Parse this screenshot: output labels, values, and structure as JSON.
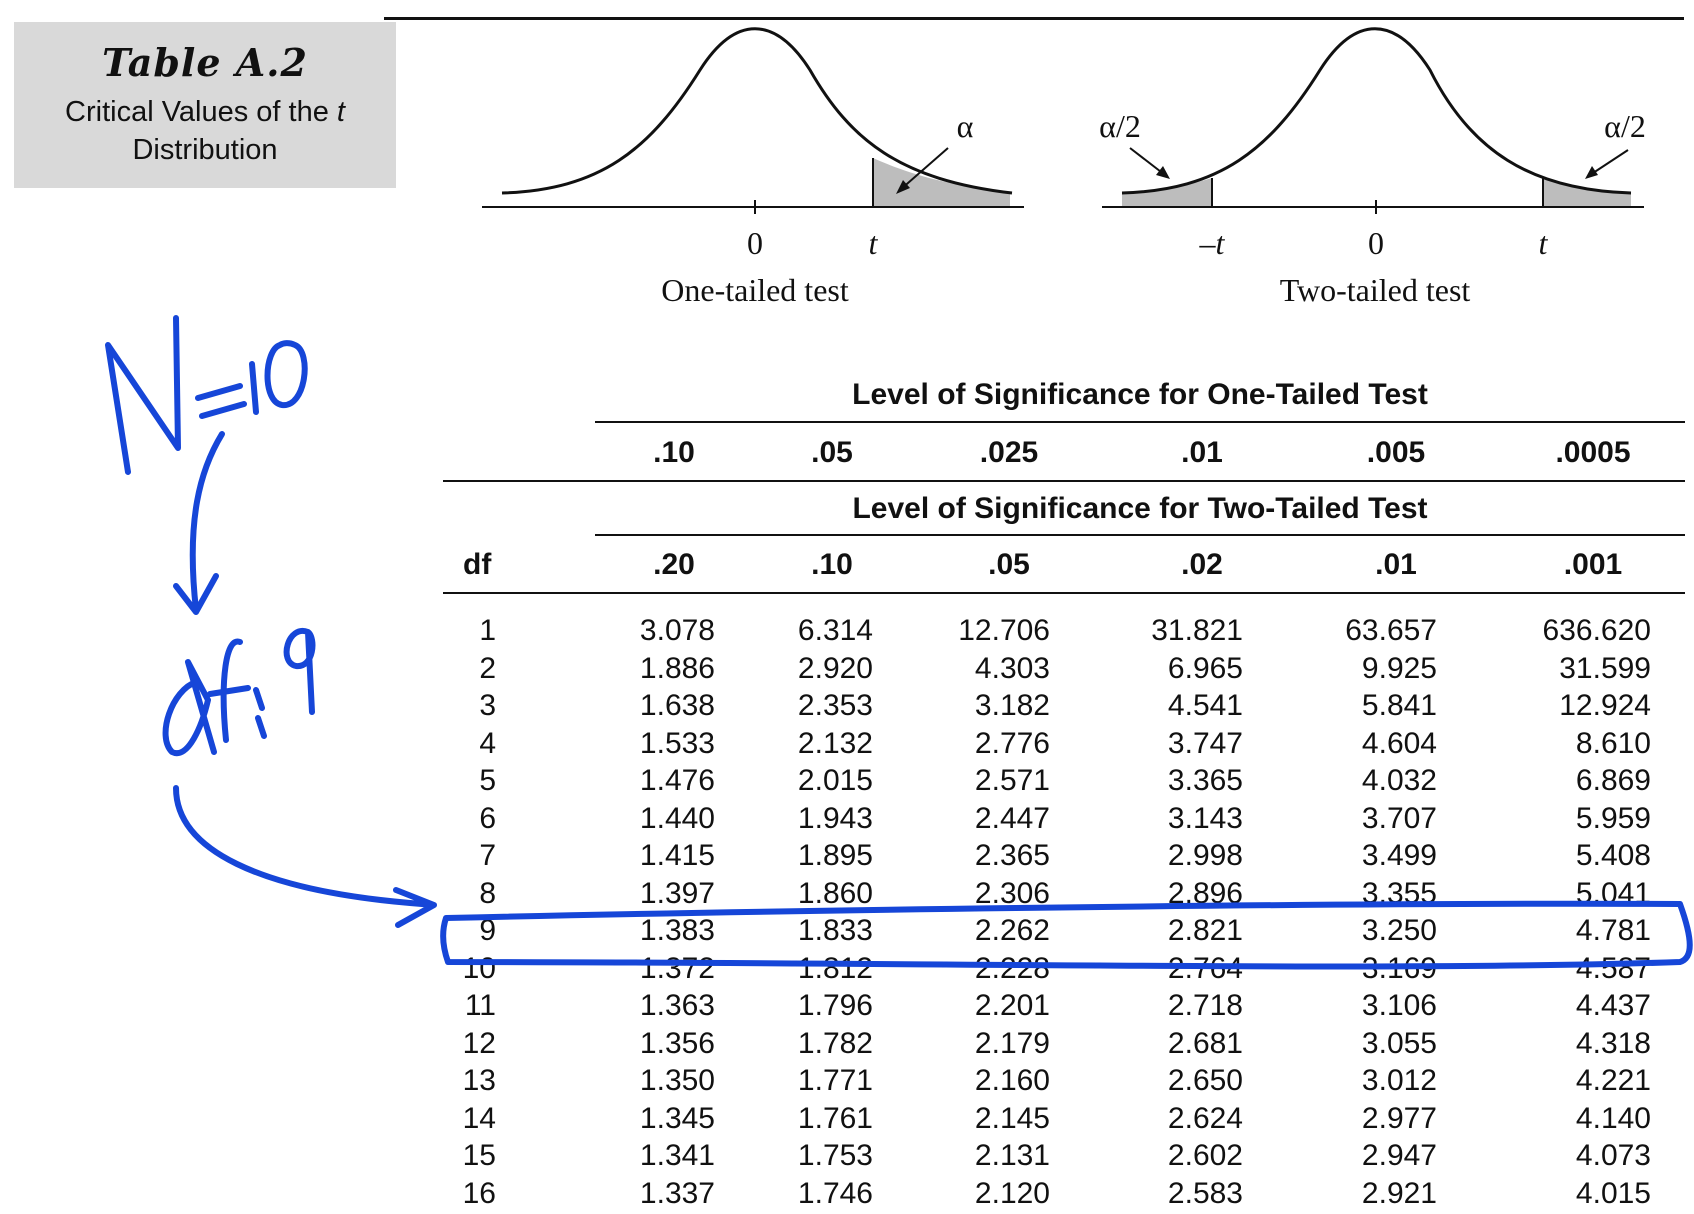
{
  "title": {
    "main": "Table A.2",
    "sub_prefix": "Critical Values of the ",
    "sub_var": "t",
    "sub_suffix": "Distribution"
  },
  "diagrams": {
    "one_tailed": {
      "alpha_label": "α",
      "zero_label": "0",
      "t_label": "t",
      "caption": "One-tailed test"
    },
    "two_tailed": {
      "alpha_left_label": "α/2",
      "alpha_right_label": "α/2",
      "neg_t_label": "–t",
      "zero_label": "0",
      "t_label": "t",
      "caption": "Two-tailed test"
    }
  },
  "table": {
    "one_tailed_header": "Level of Significance for One-Tailed Test",
    "two_tailed_header": "Level of Significance for Two-Tailed Test",
    "one_tailed_levels": [
      ".10",
      ".05",
      ".025",
      ".01",
      ".005",
      ".0005"
    ],
    "two_tailed_levels": [
      ".20",
      ".10",
      ".05",
      ".02",
      ".01",
      ".001"
    ],
    "df_header": "df",
    "rows": [
      {
        "df": "1",
        "v": [
          "3.078",
          "6.314",
          "12.706",
          "31.821",
          "63.657",
          "636.620"
        ]
      },
      {
        "df": "2",
        "v": [
          "1.886",
          "2.920",
          "4.303",
          "6.965",
          "9.925",
          "31.599"
        ]
      },
      {
        "df": "3",
        "v": [
          "1.638",
          "2.353",
          "3.182",
          "4.541",
          "5.841",
          "12.924"
        ]
      },
      {
        "df": "4",
        "v": [
          "1.533",
          "2.132",
          "2.776",
          "3.747",
          "4.604",
          "8.610"
        ]
      },
      {
        "df": "5",
        "v": [
          "1.476",
          "2.015",
          "2.571",
          "3.365",
          "4.032",
          "6.869"
        ]
      },
      {
        "df": "6",
        "v": [
          "1.440",
          "1.943",
          "2.447",
          "3.143",
          "3.707",
          "5.959"
        ]
      },
      {
        "df": "7",
        "v": [
          "1.415",
          "1.895",
          "2.365",
          "2.998",
          "3.499",
          "5.408"
        ]
      },
      {
        "df": "8",
        "v": [
          "1.397",
          "1.860",
          "2.306",
          "2.896",
          "3.355",
          "5.041"
        ]
      },
      {
        "df": "9",
        "v": [
          "1.383",
          "1.833",
          "2.262",
          "2.821",
          "3.250",
          "4.781"
        ]
      },
      {
        "df": "10",
        "v": [
          "1.372",
          "1.812",
          "2.228",
          "2.764",
          "3.169",
          "4.587"
        ]
      },
      {
        "df": "11",
        "v": [
          "1.363",
          "1.796",
          "2.201",
          "2.718",
          "3.106",
          "4.437"
        ]
      },
      {
        "df": "12",
        "v": [
          "1.356",
          "1.782",
          "2.179",
          "2.681",
          "3.055",
          "4.318"
        ]
      },
      {
        "df": "13",
        "v": [
          "1.350",
          "1.771",
          "2.160",
          "2.650",
          "3.012",
          "4.221"
        ]
      },
      {
        "df": "14",
        "v": [
          "1.345",
          "1.761",
          "2.145",
          "2.624",
          "2.977",
          "4.140"
        ]
      },
      {
        "df": "15",
        "v": [
          "1.341",
          "1.753",
          "2.131",
          "2.602",
          "2.947",
          "4.073"
        ]
      },
      {
        "df": "16",
        "v": [
          "1.337",
          "1.746",
          "2.120",
          "2.583",
          "2.921",
          "4.015"
        ]
      }
    ]
  },
  "annotations": {
    "ink_color": "#1646d8",
    "n_note": "N=10",
    "df_note": "df=9",
    "highlighted_df": "9"
  }
}
